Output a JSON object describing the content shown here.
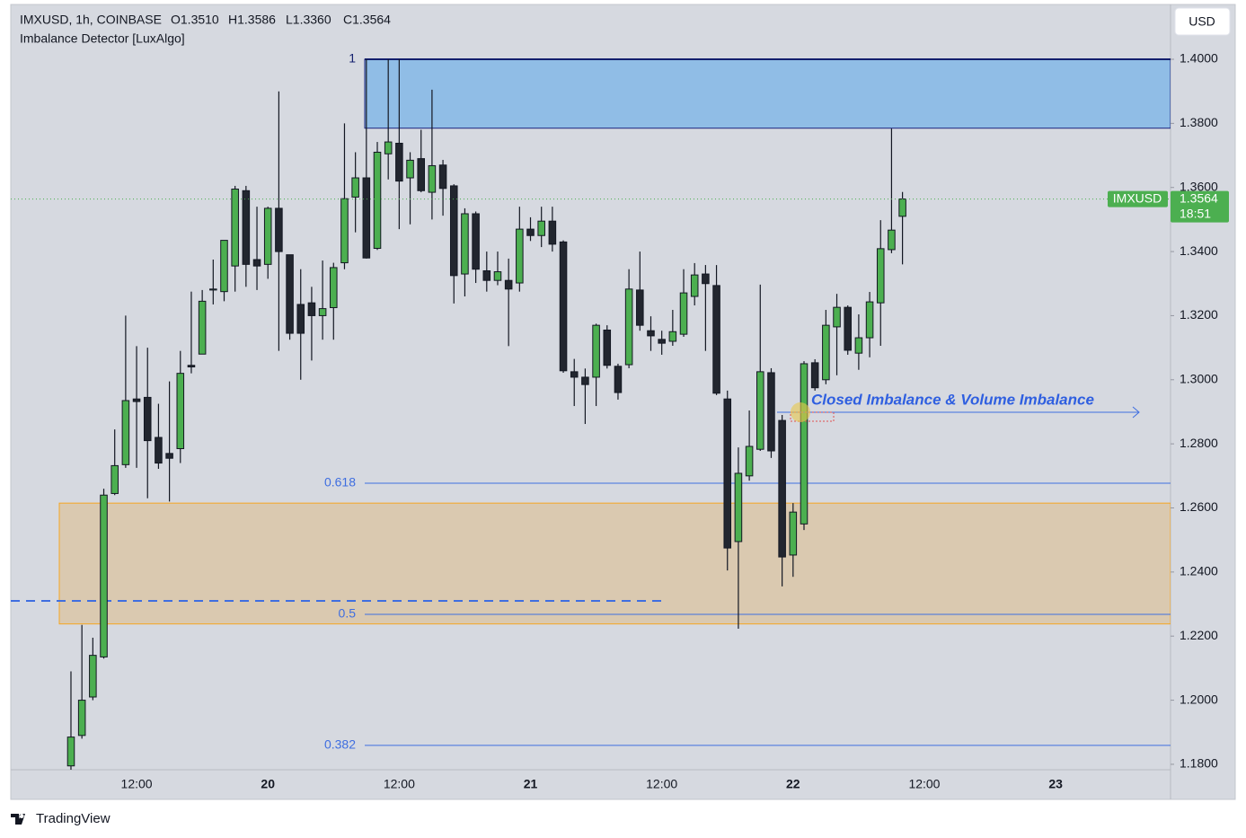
{
  "chart_data": {
    "type": "candlestick",
    "title": "IMXUSD, 1h, COINBASE",
    "ohlc_labels": [
      "O1.3510",
      "H1.3586",
      "L1.3360",
      "C1.3564"
    ],
    "indicator": "Imbalance Detector [LuxAlgo]",
    "currency": "USD",
    "brand": "TradingView",
    "annotation": "Closed Imbalance & Volume Imbalance",
    "last_price": {
      "name": "IMXUSD",
      "label": "1.3564",
      "countdown": "18:51",
      "color": "#4caf50"
    },
    "up_color": "#4caf50",
    "down_color": "#22262f",
    "categories": [
      null,
      null,
      null,
      null,
      null,
      null,
      null,
      null,
      null,
      null,
      null,
      "12:00",
      null,
      null,
      null,
      null,
      null,
      null,
      null,
      null,
      null,
      null,
      null,
      "20",
      null,
      null,
      null,
      null,
      null,
      null,
      null,
      null,
      null,
      null,
      null,
      "12:00",
      null,
      null,
      null,
      null,
      null,
      null,
      null,
      null,
      null,
      null,
      null,
      "21",
      null,
      null,
      null,
      null,
      null,
      null,
      null,
      null,
      null,
      null,
      null,
      "12:00",
      null,
      null,
      null,
      null,
      null,
      null,
      null,
      null,
      null,
      null,
      null,
      "22",
      null,
      null,
      null,
      null,
      null,
      null,
      null,
      null,
      null,
      null,
      null,
      "12:00",
      null,
      null,
      null,
      null,
      null,
      null,
      null,
      null,
      null,
      null,
      null,
      "23",
      null,
      null,
      null,
      null,
      null,
      null,
      null,
      null,
      null,
      null
    ],
    "open": [
      null,
      null,
      null,
      null,
      null,
      1.1795,
      1.189,
      1.201,
      1.2135,
      1.2645,
      1.2735,
      1.294,
      1.2945,
      1.282,
      1.277,
      1.2785,
      1.3045,
      1.308,
      1.328,
      1.3275,
      1.3355,
      1.359,
      1.3375,
      1.336,
      1.3535,
      1.339,
      1.3235,
      1.324,
      1.32,
      1.3225,
      1.3365,
      1.357,
      1.363,
      1.341,
      1.3705,
      1.3738,
      1.363,
      1.369,
      1.3585,
      1.367,
      1.3605,
      1.333,
      1.3518,
      1.334,
      1.331,
      1.331,
      1.3302,
      1.347,
      1.345,
      1.3495,
      1.343,
      1.3025,
      1.3008,
      1.3008,
      1.3155,
      1.3042,
      1.3047,
      1.328,
      1.3153,
      1.3126,
      1.312,
      1.3142,
      1.326,
      1.333,
      1.3294,
      1.294,
      1.2495,
      1.27,
      1.2783,
      1.3022,
      1.2873,
      1.2453,
      1.255,
      1.3053,
      1.3,
      1.3165,
      1.3226,
      1.3083,
      1.3131,
      1.324,
      1.3406,
      1.351,
      null,
      null,
      null,
      null,
      null,
      null,
      null,
      null,
      null,
      null,
      null,
      null,
      null,
      null,
      null,
      null,
      null,
      null,
      null,
      null,
      null,
      null,
      null,
      null
    ],
    "high": [
      null,
      null,
      null,
      null,
      null,
      1.209,
      1.2235,
      1.2195,
      1.266,
      1.2845,
      1.32,
      1.3105,
      1.31,
      1.2925,
      1.2995,
      1.309,
      1.3275,
      1.328,
      1.3375,
      1.3435,
      1.3605,
      1.3605,
      1.354,
      1.354,
      1.39,
      1.339,
      1.3345,
      1.329,
      1.3372,
      1.3365,
      1.38,
      1.371,
      1.4,
      1.3742,
      1.4,
      1.4,
      1.371,
      1.378,
      1.3905,
      1.3686,
      1.361,
      1.3535,
      1.3525,
      1.34,
      1.34,
      1.3378,
      1.354,
      1.3507,
      1.354,
      1.354,
      1.3435,
      1.3065,
      1.3035,
      1.3175,
      1.317,
      1.305,
      1.3345,
      1.34,
      1.3198,
      1.3153,
      1.3218,
      1.3345,
      1.3364,
      1.3358,
      1.3358,
      1.2966,
      1.2789,
      1.2904,
      1.3297,
      1.3036,
      1.289,
      1.2615,
      1.3058,
      1.3064,
      1.3218,
      1.3268,
      1.3232,
      1.3204,
      1.3274,
      1.3498,
      1.3784,
      1.3586,
      null,
      null,
      null,
      null,
      null,
      null,
      null,
      null,
      null,
      null,
      null,
      null,
      null,
      null,
      null,
      null,
      null,
      null,
      null,
      null,
      null,
      null,
      null,
      null
    ],
    "low": [
      null,
      null,
      null,
      null,
      null,
      1.176,
      1.188,
      1.2,
      1.213,
      1.264,
      1.2725,
      1.2725,
      1.263,
      1.2722,
      1.262,
      1.274,
      1.302,
      1.308,
      1.3235,
      1.3245,
      1.3275,
      1.329,
      1.328,
      1.3315,
      1.309,
      1.3125,
      1.3,
      1.306,
      1.3125,
      1.3125,
      1.3345,
      1.346,
      1.3378,
      1.3405,
      1.3625,
      1.347,
      1.3485,
      1.3585,
      1.35,
      1.3512,
      1.3238,
      1.326,
      1.3302,
      1.3275,
      1.3295,
      1.3105,
      1.3275,
      1.3433,
      1.3414,
      1.34,
      1.3022,
      1.2918,
      1.2862,
      1.2918,
      1.3035,
      1.2938,
      1.3036,
      1.3153,
      1.309,
      1.3078,
      1.3106,
      1.3134,
      1.3232,
      1.309,
      1.2952,
      1.2405,
      1.2223,
      1.2685,
      1.2778,
      1.2756,
      1.2355,
      1.2385,
      1.2531,
      1.2966,
      1.2986,
      1.3014,
      1.3078,
      1.3031,
      1.307,
      1.3106,
      1.3395,
      1.336,
      null,
      null,
      null,
      null,
      null,
      null,
      null,
      null,
      null,
      null,
      null,
      null,
      null,
      null,
      null,
      null,
      null,
      null,
      null,
      null,
      null,
      null,
      null,
      null
    ],
    "close": [
      null,
      null,
      null,
      null,
      null,
      1.1885,
      1.2,
      1.214,
      1.264,
      1.2732,
      1.2935,
      1.2932,
      1.281,
      1.274,
      1.2755,
      1.302,
      1.304,
      1.3245,
      1.3283,
      1.3435,
      1.3595,
      1.336,
      1.3355,
      1.3535,
      1.34,
      1.3145,
      1.3145,
      1.32,
      1.3222,
      1.335,
      1.3565,
      1.363,
      1.338,
      1.371,
      1.3742,
      1.362,
      1.3685,
      1.359,
      1.3668,
      1.3597,
      1.3325,
      1.3518,
      1.3345,
      1.331,
      1.3337,
      1.3283,
      1.347,
      1.345,
      1.3495,
      1.3423,
      1.3028,
      1.3008,
      1.2985,
      1.317,
      1.3045,
      1.296,
      1.3283,
      1.317,
      1.3137,
      1.3114,
      1.315,
      1.3271,
      1.3327,
      1.33,
      1.2958,
      1.2475,
      1.2708,
      1.2792,
      1.3025,
      1.2778,
      1.2447,
      1.2587,
      1.305,
      1.2975,
      1.317,
      1.3226,
      1.3092,
      1.3131,
      1.3243,
      1.3409,
      1.3467,
      1.3564,
      null,
      null,
      null,
      null,
      null,
      null,
      null,
      null,
      null,
      null,
      null,
      null,
      null,
      null,
      null,
      null,
      null,
      null,
      null,
      null,
      null,
      null,
      null,
      null
    ],
    "ylim": [
      1.1783,
      1.4171
    ],
    "yticks": [
      {
        "value": 1.18,
        "label": "1.1800"
      },
      {
        "value": 1.2,
        "label": "1.2000"
      },
      {
        "value": 1.22,
        "label": "1.2200"
      },
      {
        "value": 1.24,
        "label": "1.2400"
      },
      {
        "value": 1.26,
        "label": "1.2600"
      },
      {
        "value": 1.28,
        "label": "1.2800"
      },
      {
        "value": 1.3,
        "label": "1.3000"
      },
      {
        "value": 1.32,
        "label": "1.3200"
      },
      {
        "value": 1.34,
        "label": "1.3400"
      },
      {
        "value": 1.36,
        "label": "1.3600"
      },
      {
        "value": 1.38,
        "label": "1.3800"
      },
      {
        "value": 1.4,
        "label": "1.4000"
      }
    ],
    "zones": [
      {
        "high": 1.4,
        "low": 1.3785,
        "color": "#90bde6",
        "border": "#1a237e"
      },
      {
        "high": 1.2615,
        "low": 1.2238,
        "color": "#dac9b0",
        "border": "#f5a623"
      }
    ],
    "fib_levels": [
      {
        "value": 1.4,
        "label": "1",
        "color": "#131f6e"
      },
      {
        "value": 1.2677,
        "label": "0.618",
        "color": "#3f6ee0"
      },
      {
        "value": 1.2268,
        "label": "0.5",
        "color": "#3f6ee0"
      },
      {
        "value": 1.1859,
        "label": "0.382",
        "color": "#3f6ee0"
      }
    ],
    "dashed_level": {
      "value": 1.231,
      "color": "#3f6ee0"
    }
  }
}
